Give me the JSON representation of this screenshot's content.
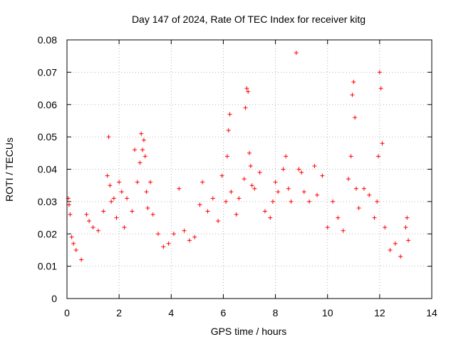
{
  "chart_data": {
    "type": "scatter",
    "title": "Day 147 of 2024, Rate Of TEC Index for receiver kitg",
    "xlabel": "GPS time / hours",
    "ylabel": "ROTI / TECUs",
    "xlim": [
      0,
      14
    ],
    "ylim": [
      0,
      0.08
    ],
    "x_ticks": [
      0,
      2,
      4,
      6,
      8,
      10,
      12,
      14
    ],
    "x_tick_labels": [
      "0",
      "2",
      "4",
      "6",
      "8",
      "10",
      "12",
      "14"
    ],
    "y_ticks": [
      0,
      0.01,
      0.02,
      0.03,
      0.04,
      0.05,
      0.06,
      0.07,
      0.08
    ],
    "y_tick_labels": [
      "0",
      "0.01",
      "0.02",
      "0.03",
      "0.04",
      "0.05",
      "0.06",
      "0.07",
      "0.08"
    ],
    "grid": true,
    "marker": "+",
    "marker_color": "#ff0000",
    "series": [
      {
        "name": "ROTI",
        "points": [
          [
            0.05,
            0.031
          ],
          [
            0.08,
            0.029
          ],
          [
            0.12,
            0.026
          ],
          [
            0.18,
            0.019
          ],
          [
            0.25,
            0.017
          ],
          [
            0.35,
            0.015
          ],
          [
            0.55,
            0.012
          ],
          [
            0.75,
            0.026
          ],
          [
            0.85,
            0.024
          ],
          [
            1.0,
            0.022
          ],
          [
            1.2,
            0.021
          ],
          [
            1.4,
            0.027
          ],
          [
            1.55,
            0.038
          ],
          [
            1.6,
            0.05
          ],
          [
            1.65,
            0.035
          ],
          [
            1.7,
            0.03
          ],
          [
            1.8,
            0.031
          ],
          [
            1.9,
            0.025
          ],
          [
            2.0,
            0.036
          ],
          [
            2.1,
            0.033
          ],
          [
            2.2,
            0.022
          ],
          [
            2.3,
            0.031
          ],
          [
            2.5,
            0.027
          ],
          [
            2.6,
            0.046
          ],
          [
            2.7,
            0.036
          ],
          [
            2.8,
            0.042
          ],
          [
            2.85,
            0.051
          ],
          [
            2.9,
            0.046
          ],
          [
            2.95,
            0.049
          ],
          [
            3.0,
            0.044
          ],
          [
            3.05,
            0.033
          ],
          [
            3.1,
            0.028
          ],
          [
            3.2,
            0.036
          ],
          [
            3.3,
            0.026
          ],
          [
            3.5,
            0.02
          ],
          [
            3.7,
            0.016
          ],
          [
            3.9,
            0.017
          ],
          [
            4.1,
            0.02
          ],
          [
            4.3,
            0.034
          ],
          [
            4.5,
            0.021
          ],
          [
            4.7,
            0.018
          ],
          [
            4.9,
            0.019
          ],
          [
            5.1,
            0.029
          ],
          [
            5.2,
            0.036
          ],
          [
            5.4,
            0.027
          ],
          [
            5.6,
            0.031
          ],
          [
            5.8,
            0.024
          ],
          [
            5.95,
            0.038
          ],
          [
            6.1,
            0.03
          ],
          [
            6.15,
            0.044
          ],
          [
            6.2,
            0.052
          ],
          [
            6.25,
            0.057
          ],
          [
            6.3,
            0.033
          ],
          [
            6.5,
            0.026
          ],
          [
            6.6,
            0.031
          ],
          [
            6.8,
            0.037
          ],
          [
            6.85,
            0.059
          ],
          [
            6.9,
            0.065
          ],
          [
            6.95,
            0.064
          ],
          [
            7.0,
            0.045
          ],
          [
            7.05,
            0.041
          ],
          [
            7.1,
            0.035
          ],
          [
            7.2,
            0.034
          ],
          [
            7.4,
            0.039
          ],
          [
            7.6,
            0.027
          ],
          [
            7.8,
            0.025
          ],
          [
            7.9,
            0.03
          ],
          [
            8.0,
            0.036
          ],
          [
            8.1,
            0.033
          ],
          [
            8.3,
            0.04
          ],
          [
            8.4,
            0.044
          ],
          [
            8.5,
            0.034
          ],
          [
            8.6,
            0.03
          ],
          [
            8.8,
            0.076
          ],
          [
            8.9,
            0.04
          ],
          [
            9.0,
            0.039
          ],
          [
            9.1,
            0.033
          ],
          [
            9.3,
            0.03
          ],
          [
            9.5,
            0.041
          ],
          [
            9.6,
            0.032
          ],
          [
            9.8,
            0.038
          ],
          [
            10.0,
            0.022
          ],
          [
            10.2,
            0.03
          ],
          [
            10.4,
            0.025
          ],
          [
            10.6,
            0.021
          ],
          [
            10.8,
            0.037
          ],
          [
            10.9,
            0.044
          ],
          [
            10.95,
            0.063
          ],
          [
            11.0,
            0.067
          ],
          [
            11.05,
            0.056
          ],
          [
            11.1,
            0.034
          ],
          [
            11.2,
            0.028
          ],
          [
            11.4,
            0.034
          ],
          [
            11.6,
            0.032
          ],
          [
            11.8,
            0.025
          ],
          [
            11.9,
            0.03
          ],
          [
            11.95,
            0.044
          ],
          [
            12.0,
            0.07
          ],
          [
            12.05,
            0.065
          ],
          [
            12.1,
            0.048
          ],
          [
            12.2,
            0.022
          ],
          [
            12.4,
            0.015
          ],
          [
            12.6,
            0.017
          ],
          [
            12.8,
            0.013
          ],
          [
            13.0,
            0.022
          ],
          [
            13.05,
            0.025
          ],
          [
            13.1,
            0.018
          ]
        ]
      }
    ]
  }
}
